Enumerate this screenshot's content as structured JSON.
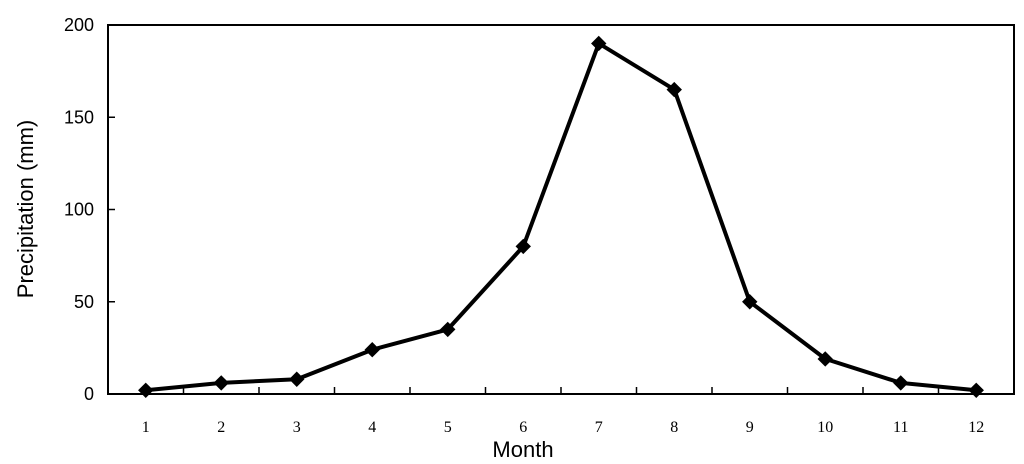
{
  "chart_data": {
    "type": "line",
    "title": "",
    "xlabel": "Month",
    "ylabel": "Precipitation (mm)",
    "categories": [
      "1",
      "2",
      "3",
      "4",
      "5",
      "6",
      "7",
      "8",
      "9",
      "10",
      "11",
      "12"
    ],
    "x": [
      1,
      2,
      3,
      4,
      5,
      6,
      7,
      8,
      9,
      10,
      11,
      12
    ],
    "series": [
      {
        "values": [
          2,
          6,
          8,
          24,
          35,
          80,
          190,
          165,
          50,
          19,
          6,
          2
        ],
        "color": "#000000",
        "marker": "diamond"
      }
    ],
    "ylim": [
      0,
      200
    ],
    "yticks": [
      0,
      50,
      100,
      150,
      200
    ],
    "grid": false,
    "legend": "none"
  }
}
